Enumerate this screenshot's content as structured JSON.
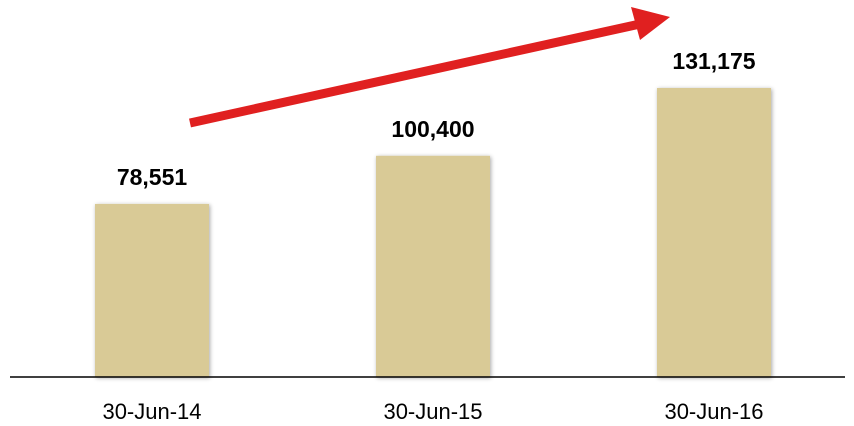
{
  "chart_data": {
    "type": "bar",
    "categories": [
      "30-Jun-14",
      "30-Jun-15",
      "30-Jun-16"
    ],
    "values": [
      78551,
      100400,
      131175
    ],
    "value_labels": [
      "78,551",
      "100,400",
      "131,175"
    ],
    "color": "#d9ca96"
  }
}
